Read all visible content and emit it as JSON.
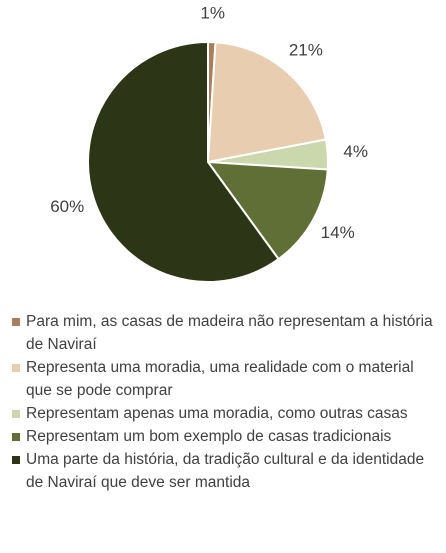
{
  "chart_data": {
    "type": "pie",
    "categories": [
      "Para mim, as casas de madeira não representam a história de Naviraí",
      "Representa uma moradia, uma realidade com o material que se pode comprar",
      "Representam apenas uma moradia, como outras casas",
      "Representam um bom exemplo de casas tradicionais",
      "Uma parte da história, da tradição cultural e da identidade de Naviraí que deve ser mantida"
    ],
    "values": [
      1,
      21,
      4,
      14,
      60
    ],
    "value_labels": [
      "1%",
      "21%",
      "4%",
      "14%",
      "60%"
    ],
    "colors": [
      "#a9805e",
      "#e9cdb1",
      "#cbd8ad",
      "#5f6f36",
      "#2c3616"
    ],
    "legend": "bottom"
  }
}
